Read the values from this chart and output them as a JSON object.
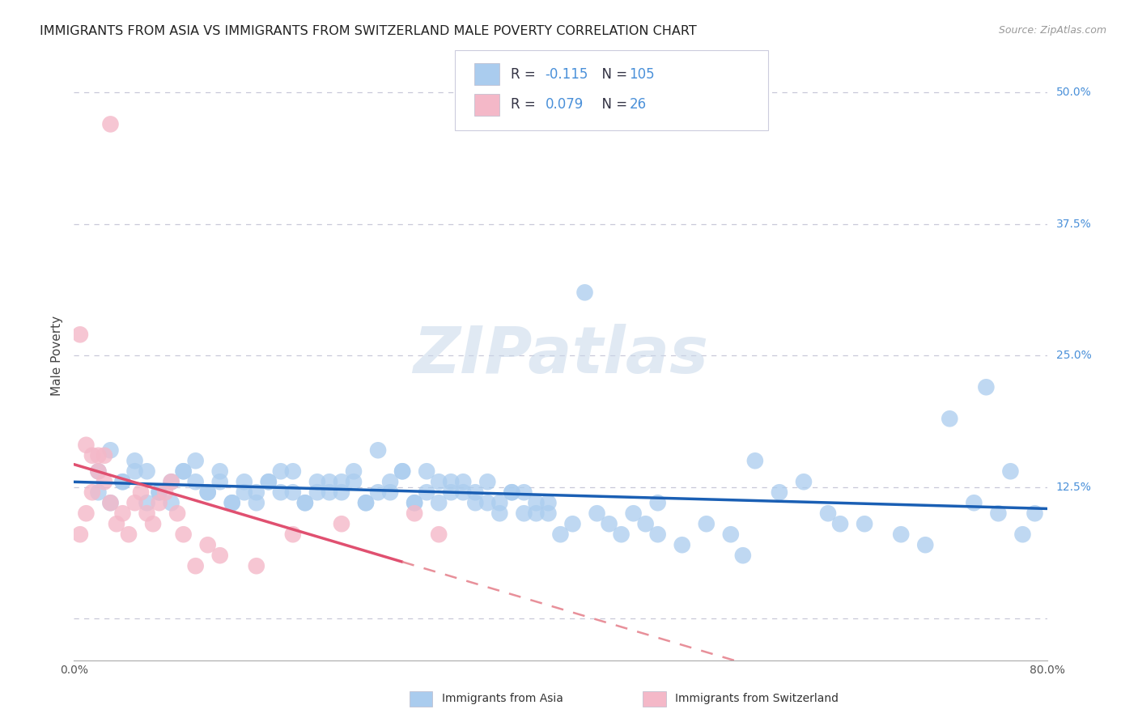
{
  "title": "IMMIGRANTS FROM ASIA VS IMMIGRANTS FROM SWITZERLAND MALE POVERTY CORRELATION CHART",
  "source": "Source: ZipAtlas.com",
  "ylabel": "Male Poverty",
  "x_min": 0.0,
  "x_max": 0.8,
  "y_min": -0.04,
  "y_max": 0.54,
  "x_ticks": [
    0.0,
    0.2,
    0.4,
    0.6,
    0.8
  ],
  "x_tick_labels": [
    "0.0%",
    "",
    "",
    "",
    "80.0%"
  ],
  "y_ticks": [
    0.0,
    0.125,
    0.25,
    0.375,
    0.5
  ],
  "y_tick_labels": [
    "",
    "12.5%",
    "25.0%",
    "37.5%",
    "50.0%"
  ],
  "blue_color": "#aaccee",
  "pink_color": "#f4b8c8",
  "blue_line_color": "#1a5fb4",
  "pink_line_color": "#e05070",
  "pink_dash_color": "#e8909a",
  "watermark": "ZIPatlas",
  "asia_N": 105,
  "swiss_N": 26,
  "asia_R": "-0.115",
  "swiss_R": "0.079",
  "background_color": "#ffffff",
  "grid_color": "#c8c8d8",
  "title_fontsize": 11.5,
  "axis_label_fontsize": 11,
  "tick_fontsize": 10,
  "legend_fontsize": 12,
  "legend_color_dark": "#333344",
  "legend_color_blue": "#4a90d9",
  "asia_pts_x": [
    0.02,
    0.03,
    0.04,
    0.02,
    0.05,
    0.06,
    0.03,
    0.04,
    0.07,
    0.05,
    0.08,
    0.06,
    0.09,
    0.07,
    0.1,
    0.08,
    0.11,
    0.09,
    0.12,
    0.1,
    0.13,
    0.11,
    0.14,
    0.12,
    0.15,
    0.13,
    0.16,
    0.14,
    0.17,
    0.15,
    0.18,
    0.16,
    0.19,
    0.17,
    0.2,
    0.18,
    0.21,
    0.19,
    0.22,
    0.2,
    0.23,
    0.21,
    0.24,
    0.22,
    0.25,
    0.23,
    0.26,
    0.24,
    0.27,
    0.25,
    0.28,
    0.26,
    0.29,
    0.27,
    0.3,
    0.28,
    0.31,
    0.29,
    0.32,
    0.3,
    0.33,
    0.31,
    0.34,
    0.32,
    0.35,
    0.33,
    0.36,
    0.34,
    0.37,
    0.35,
    0.38,
    0.36,
    0.39,
    0.37,
    0.4,
    0.38,
    0.41,
    0.39,
    0.42,
    0.43,
    0.44,
    0.45,
    0.46,
    0.47,
    0.48,
    0.5,
    0.52,
    0.54,
    0.56,
    0.58,
    0.6,
    0.62,
    0.65,
    0.68,
    0.7,
    0.72,
    0.74,
    0.76,
    0.78,
    0.75,
    0.79,
    0.77,
    0.63,
    0.55,
    0.48
  ],
  "asia_pts_y": [
    0.14,
    0.16,
    0.13,
    0.12,
    0.15,
    0.14,
    0.11,
    0.13,
    0.12,
    0.14,
    0.13,
    0.11,
    0.14,
    0.12,
    0.13,
    0.11,
    0.12,
    0.14,
    0.13,
    0.15,
    0.11,
    0.12,
    0.13,
    0.14,
    0.12,
    0.11,
    0.13,
    0.12,
    0.14,
    0.11,
    0.12,
    0.13,
    0.11,
    0.12,
    0.13,
    0.14,
    0.12,
    0.11,
    0.13,
    0.12,
    0.14,
    0.13,
    0.11,
    0.12,
    0.16,
    0.13,
    0.12,
    0.11,
    0.14,
    0.12,
    0.11,
    0.13,
    0.12,
    0.14,
    0.13,
    0.11,
    0.12,
    0.14,
    0.13,
    0.11,
    0.12,
    0.13,
    0.11,
    0.12,
    0.1,
    0.11,
    0.12,
    0.13,
    0.12,
    0.11,
    0.1,
    0.12,
    0.11,
    0.1,
    0.08,
    0.11,
    0.09,
    0.1,
    0.31,
    0.1,
    0.09,
    0.08,
    0.1,
    0.09,
    0.08,
    0.07,
    0.09,
    0.08,
    0.15,
    0.12,
    0.13,
    0.1,
    0.09,
    0.08,
    0.07,
    0.19,
    0.11,
    0.1,
    0.08,
    0.22,
    0.1,
    0.14,
    0.09,
    0.06,
    0.11
  ],
  "swiss_pts_x": [
    0.005,
    0.01,
    0.015,
    0.02,
    0.025,
    0.03,
    0.035,
    0.04,
    0.045,
    0.05,
    0.055,
    0.06,
    0.065,
    0.07,
    0.075,
    0.08,
    0.085,
    0.09,
    0.1,
    0.11,
    0.12,
    0.15,
    0.18,
    0.22,
    0.28,
    0.3
  ],
  "swiss_pts_y": [
    0.08,
    0.1,
    0.12,
    0.14,
    0.13,
    0.11,
    0.09,
    0.1,
    0.08,
    0.11,
    0.12,
    0.1,
    0.09,
    0.11,
    0.12,
    0.13,
    0.1,
    0.08,
    0.05,
    0.07,
    0.06,
    0.05,
    0.08,
    0.09,
    0.1,
    0.08
  ],
  "swiss_outlier_x": [
    0.03,
    0.005,
    0.01,
    0.015,
    0.02,
    0.025
  ],
  "swiss_outlier_y": [
    0.47,
    0.27,
    0.165,
    0.155,
    0.155,
    0.155
  ]
}
